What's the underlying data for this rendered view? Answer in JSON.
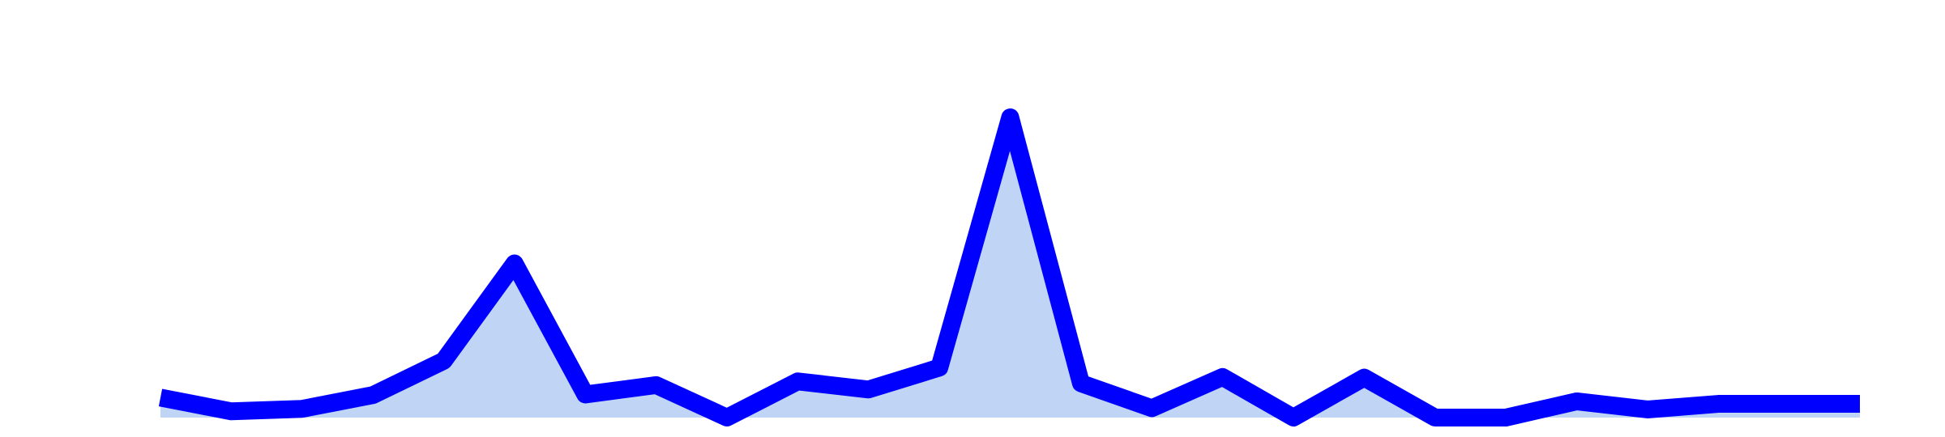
{
  "chart_data": {
    "type": "area",
    "x": [
      1,
      2,
      3,
      4,
      5,
      6,
      7,
      8,
      9,
      10,
      11,
      12,
      13,
      14,
      15,
      16,
      17,
      18,
      19,
      20,
      21,
      22,
      23,
      24,
      25
    ],
    "series": [
      {
        "values": [
          32,
          10,
          14,
          36,
          91,
          247,
          37,
          52,
          0,
          58,
          45,
          80,
          481,
          55,
          15,
          65,
          0,
          64,
          0,
          0,
          26,
          13,
          22,
          22,
          22
        ]
      }
    ],
    "ylim": [
      0,
      500
    ],
    "grid": false,
    "colors": {
      "line": "#0000ff",
      "fill": "#c0d4f5",
      "background": "#ffffff"
    }
  }
}
